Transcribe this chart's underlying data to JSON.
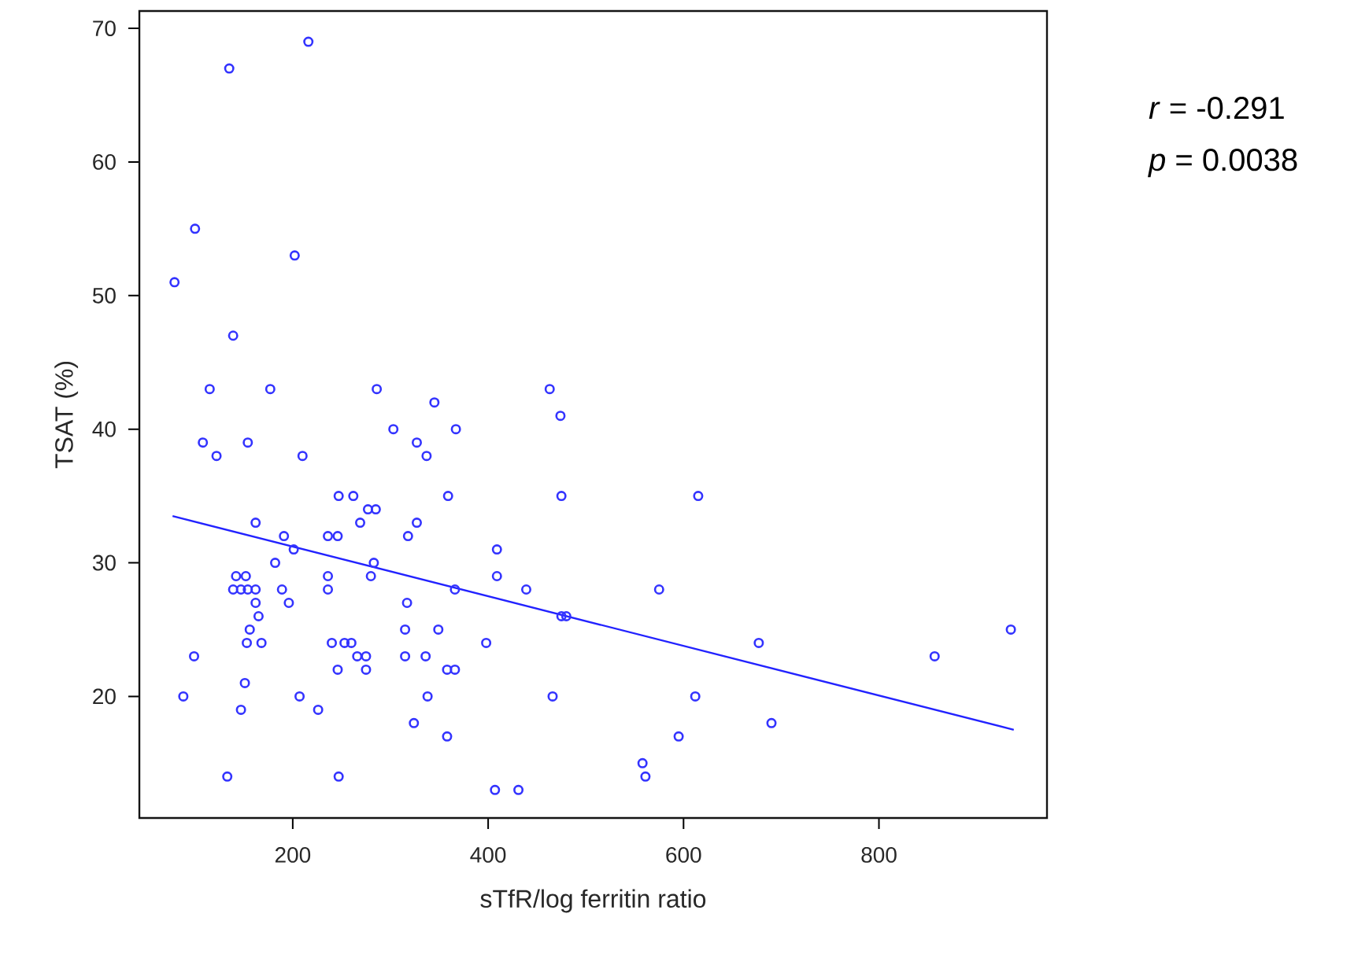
{
  "chart_data": {
    "type": "scatter",
    "xlabel": "sTfR/log ferritin ratio",
    "ylabel": "TSAT (%)",
    "annotations": [
      "*r* = -0.291",
      "*p* = 0.0038"
    ],
    "xlim": [
      43,
      972
    ],
    "ylim": [
      10.9,
      71.3
    ],
    "xticks": [
      200,
      400,
      600,
      800
    ],
    "yticks": [
      20,
      30,
      40,
      50,
      60,
      70
    ],
    "series": [
      {
        "marker": "circle",
        "color": "#3333ff",
        "x": [
          216,
          135,
          100,
          202,
          79,
          139,
          115,
          177,
          286,
          345,
          463,
          474,
          303,
          367,
          108,
          154,
          327,
          122,
          210,
          337,
          247,
          262,
          359,
          475,
          277,
          285,
          162,
          269,
          327,
          191,
          236,
          246,
          318,
          201,
          409,
          182,
          283,
          142,
          152,
          236,
          280,
          409,
          139,
          147,
          154,
          162,
          189,
          236,
          366,
          439,
          162,
          196,
          317,
          165,
          475,
          480,
          156,
          315,
          349,
          153,
          168,
          240,
          253,
          260,
          398,
          99,
          266,
          275,
          315,
          336,
          246,
          275,
          358,
          366,
          151,
          88,
          207,
          338,
          466,
          147,
          226,
          324,
          358,
          133,
          247,
          407,
          431,
          615,
          575,
          677,
          857,
          935,
          612,
          690,
          595,
          558,
          561
        ],
        "values": [
          69,
          67,
          55,
          53,
          51,
          47,
          43,
          43,
          43,
          42,
          43,
          41,
          40,
          40,
          39,
          39,
          39,
          38,
          38,
          38,
          35,
          35,
          35,
          35,
          34,
          34,
          33,
          33,
          33,
          32,
          32,
          32,
          32,
          31,
          31,
          30,
          30,
          29,
          29,
          29,
          29,
          29,
          28,
          28,
          28,
          28,
          28,
          28,
          28,
          28,
          27,
          27,
          27,
          26,
          26,
          26,
          25,
          25,
          25,
          24,
          24,
          24,
          24,
          24,
          24,
          23,
          23,
          23,
          23,
          23,
          22,
          22,
          22,
          22,
          21,
          20,
          20,
          20,
          20,
          19,
          19,
          18,
          17,
          14,
          14,
          13,
          13,
          35,
          28,
          24,
          23,
          25,
          20,
          18,
          17,
          15,
          14
        ]
      },
      {
        "type": "line",
        "color": "#2222ff",
        "x": [
          77,
          938
        ],
        "values": [
          33.5,
          17.5
        ]
      }
    ]
  }
}
